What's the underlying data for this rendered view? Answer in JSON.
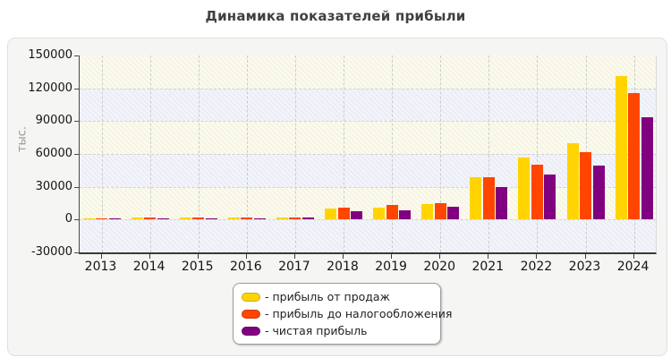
{
  "chart_data": {
    "type": "bar",
    "title": "Динамика показателей прибыли",
    "xlabel": "",
    "ylabel": "тыс.",
    "categories": [
      "2013",
      "2014",
      "2015",
      "2016",
      "2017",
      "2018",
      "2019",
      "2020",
      "2021",
      "2022",
      "2023",
      "2024"
    ],
    "series": [
      {
        "name": "прибыль от продаж",
        "color": "#FFD400",
        "values": [
          1500,
          1800,
          2000,
          2000,
          2200,
          10000,
          11000,
          14000,
          39000,
          57000,
          69500,
          131500
        ]
      },
      {
        "name": "прибыль до налогообложения",
        "color": "#FF4500",
        "values": [
          1400,
          1700,
          1900,
          1900,
          2100,
          11000,
          13000,
          15000,
          38500,
          50500,
          61500,
          116000
        ]
      },
      {
        "name": "чистая прибыль",
        "color": "#800080",
        "values": [
          1100,
          1300,
          1500,
          1500,
          1700,
          7700,
          8500,
          11500,
          30000,
          41000,
          49000,
          93500
        ]
      }
    ],
    "ylim": [
      -30000,
      150000
    ],
    "yticks": [
      150000,
      120000,
      90000,
      60000,
      30000,
      0,
      -30000
    ],
    "grid": true,
    "plot_background": {
      "band_color_a": "#faf9ec",
      "band_color_b": "#f1f2f9",
      "hatch": "diagonal"
    },
    "legend": {
      "position": "bottom-center",
      "item_prefix": "- "
    }
  }
}
